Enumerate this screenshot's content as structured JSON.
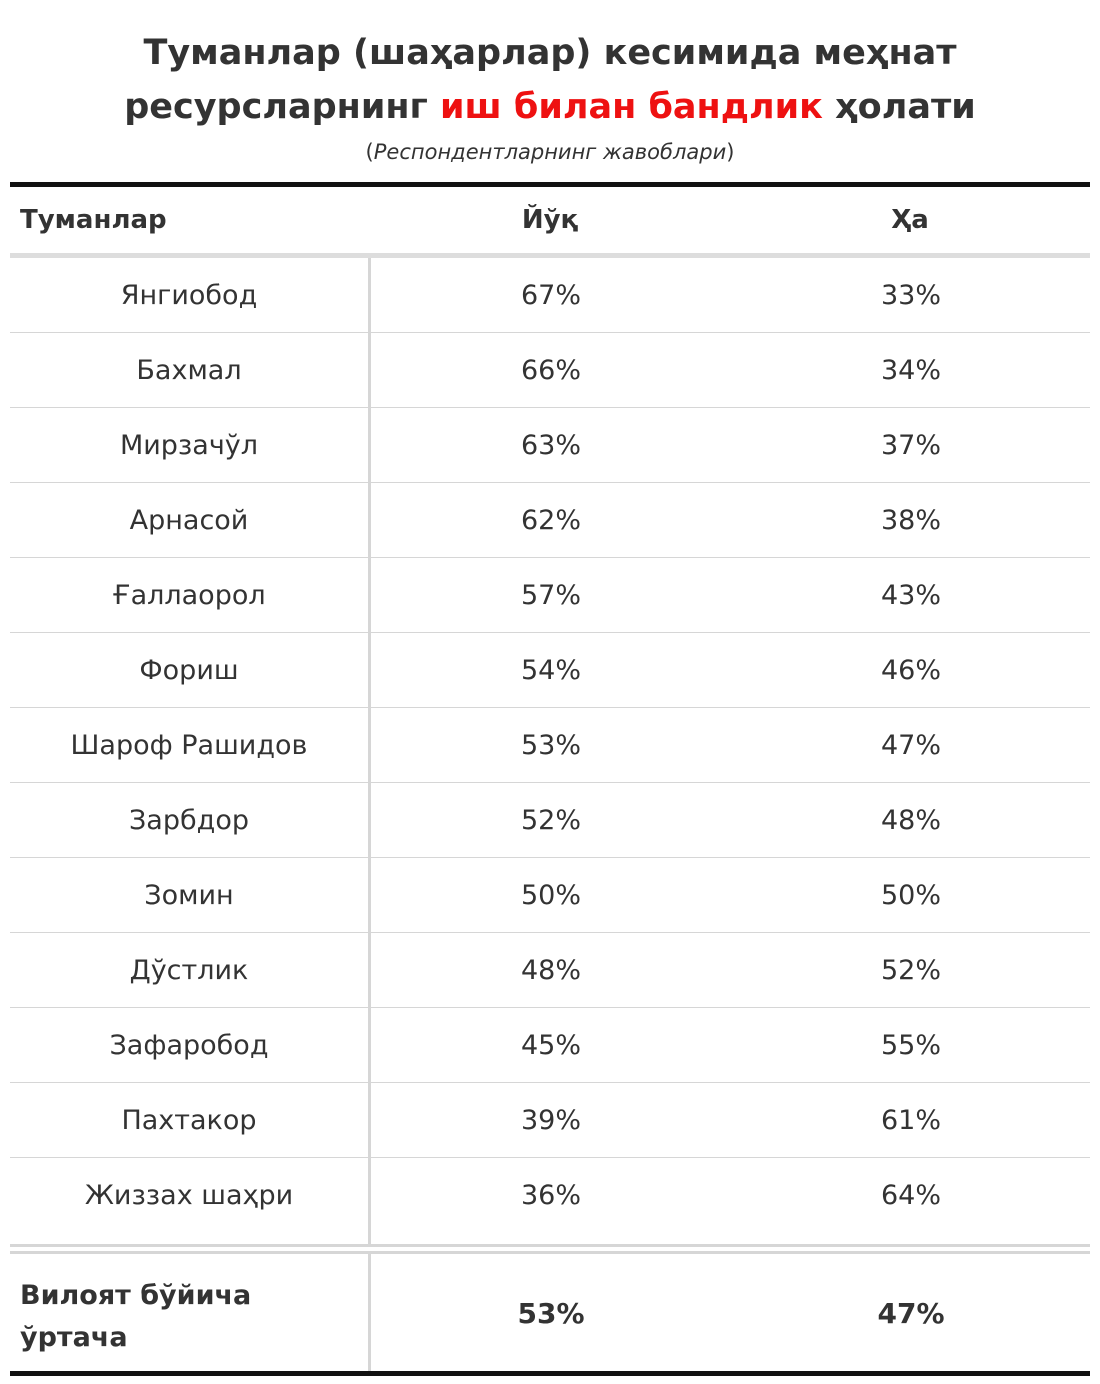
{
  "title": {
    "line1": "Туманлар (шаҳарлар) кесимида меҳнат",
    "line2_pre": "ресурсларнинг ",
    "line2_highlight": "иш билан бандлик",
    "line2_post": " ҳолати"
  },
  "subtitle": "Респондентларнинг жавоблари",
  "colors": {
    "highlight": "#ee1111",
    "text": "#333333",
    "rule": "#111111",
    "grid": "#d6d6d6"
  },
  "table": {
    "headers": [
      "Туманлар",
      "Йўқ",
      "Ҳа"
    ],
    "rows": [
      {
        "district": "Янгиобод",
        "no": "67%",
        "yes": "33%"
      },
      {
        "district": "Бахмал",
        "no": "66%",
        "yes": "34%"
      },
      {
        "district": "Мирзачўл",
        "no": "63%",
        "yes": "37%"
      },
      {
        "district": "Арнасой",
        "no": "62%",
        "yes": "38%"
      },
      {
        "district": "Ғаллаорол",
        "no": "57%",
        "yes": "43%"
      },
      {
        "district": "Фориш",
        "no": "54%",
        "yes": "46%"
      },
      {
        "district": "Шароф Рашидов",
        "no": "53%",
        "yes": "47%"
      },
      {
        "district": "Зарбдор",
        "no": "52%",
        "yes": "48%"
      },
      {
        "district": "Зомин",
        "no": "50%",
        "yes": "50%"
      },
      {
        "district": "Дўстлик",
        "no": "48%",
        "yes": "52%"
      },
      {
        "district": "Зафаробод",
        "no": "45%",
        "yes": "55%"
      },
      {
        "district": "Пахтакор",
        "no": "39%",
        "yes": "61%"
      },
      {
        "district": "Жиззах шаҳри",
        "no": "36%",
        "yes": "64%"
      }
    ],
    "footer": {
      "label": "Вилоят бўйича ўртача",
      "no": "53%",
      "yes": "47%"
    }
  }
}
